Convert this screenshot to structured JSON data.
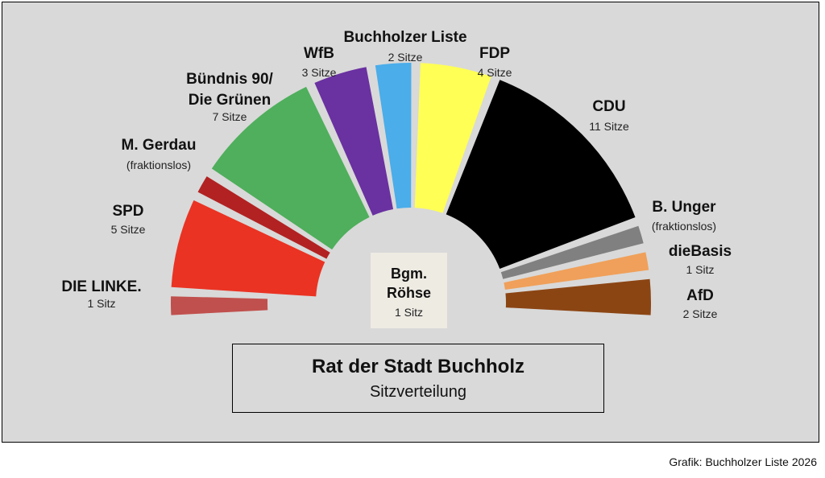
{
  "chart_data": {
    "type": "parliament",
    "title": "Rat der Stadt Buchholz",
    "subtitle": "Sitzverteilung",
    "center_box": {
      "line1": "Bgm.",
      "line2": "Röhse",
      "seats": "1 Sitz"
    },
    "credit": "Grafik: Buchholzer Liste 2026",
    "parties": [
      {
        "name": "DIE LINKE.",
        "seats": 1,
        "seats_label": "1 Sitz",
        "color": "#c0504d",
        "ring": "outer"
      },
      {
        "name": "SPD",
        "seats": 5,
        "seats_label": "5 Sitze",
        "color": "#ea3323",
        "ring": "full"
      },
      {
        "name": "M. Gerdau",
        "seats": 1,
        "seats_label": "(fraktionslos)",
        "color": "#b22222",
        "ring": "full"
      },
      {
        "name": "Bündnis 90/\nDie Grünen",
        "seats": 7,
        "seats_label": "7 Sitze",
        "color": "#4faf5c",
        "ring": "full"
      },
      {
        "name": "WfB",
        "seats": 3,
        "seats_label": "3 Sitze",
        "color": "#6a31a1",
        "ring": "full"
      },
      {
        "name": "Buchholzer Liste",
        "seats": 2,
        "seats_label": "2 Sitze",
        "color": "#4badea",
        "ring": "full"
      },
      {
        "name": "FDP",
        "seats": 4,
        "seats_label": "4 Sitze",
        "color": "#ffff55",
        "ring": "full"
      },
      {
        "name": "CDU",
        "seats": 11,
        "seats_label": "11 Sitze",
        "color": "#000000",
        "ring": "full"
      },
      {
        "name": "B. Unger",
        "seats": 1,
        "seats_label": "(fraktionslos)",
        "color": "#808080",
        "ring": "full"
      },
      {
        "name": "dieBasis",
        "seats": 1,
        "seats_label": "1 Sitz",
        "color": "#f0a05a",
        "ring": "full"
      },
      {
        "name": "AfD",
        "seats": 2,
        "seats_label": "2 Sitze",
        "color": "#8b4513",
        "ring": "full"
      }
    ]
  }
}
